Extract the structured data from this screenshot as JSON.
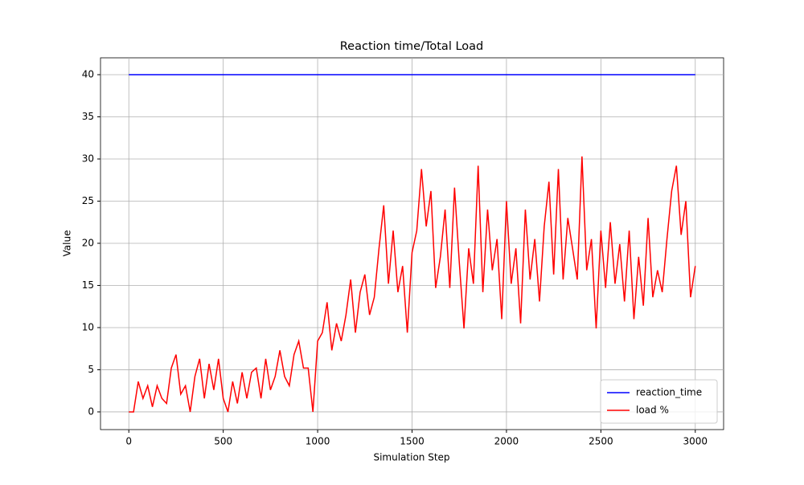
{
  "chart_data": {
    "type": "line",
    "title": "Reaction time/Total Load",
    "x_label": "Simulation Step",
    "y_label": "Value",
    "xlim": [
      -150,
      3150
    ],
    "ylim": [
      -2.1,
      42
    ],
    "xticks": [
      0,
      500,
      1000,
      1500,
      2000,
      2500,
      3000
    ],
    "yticks": [
      0,
      5,
      10,
      15,
      20,
      25,
      30,
      35,
      40
    ],
    "grid": true,
    "legend": "lower right",
    "series": [
      {
        "name": "reaction_time",
        "color": "#0000ff",
        "x": [
          0,
          3000
        ],
        "values": [
          40,
          40
        ]
      },
      {
        "name": "load %",
        "color": "#ff0000",
        "x": [
          0,
          25,
          50,
          75,
          100,
          125,
          150,
          175,
          200,
          225,
          250,
          275,
          300,
          325,
          350,
          375,
          400,
          425,
          450,
          475,
          500,
          525,
          550,
          575,
          600,
          625,
          650,
          675,
          700,
          725,
          750,
          775,
          800,
          825,
          850,
          875,
          900,
          925,
          950,
          975,
          1000,
          1025,
          1050,
          1075,
          1100,
          1125,
          1150,
          1175,
          1200,
          1225,
          1250,
          1275,
          1300,
          1325,
          1350,
          1375,
          1400,
          1425,
          1450,
          1475,
          1500,
          1525,
          1550,
          1575,
          1600,
          1625,
          1650,
          1675,
          1700,
          1725,
          1750,
          1775,
          1800,
          1825,
          1850,
          1875,
          1900,
          1925,
          1950,
          1975,
          2000,
          2025,
          2050,
          2075,
          2100,
          2125,
          2150,
          2175,
          2200,
          2225,
          2250,
          2275,
          2300,
          2325,
          2350,
          2375,
          2400,
          2425,
          2450,
          2475,
          2500,
          2525,
          2550,
          2575,
          2600,
          2625,
          2650,
          2675,
          2700,
          2725,
          2750,
          2775,
          2800,
          2825,
          2850,
          2875,
          2900,
          2925,
          2950,
          2975,
          3000
        ],
        "values": [
          0,
          0,
          3.6,
          1.6,
          3.1,
          0.6,
          3.1,
          1.6,
          1,
          5.2,
          6.8,
          2.1,
          3.1,
          0,
          4.2,
          6.3,
          1.6,
          5.7,
          2.6,
          6.3,
          1.6,
          0,
          3.6,
          1,
          4.7,
          1.6,
          4.7,
          5.2,
          1.6,
          6.3,
          2.6,
          4.2,
          7.3,
          4.2,
          3.1,
          6.8,
          8.4,
          5.2,
          5.2,
          0,
          8.4,
          9.4,
          13,
          7.3,
          10.5,
          8.4,
          11.5,
          15.7,
          9.4,
          14.2,
          16.3,
          11.5,
          13.6,
          19.4,
          24.5,
          15.2,
          21.5,
          14.2,
          17.3,
          9.4,
          18.9,
          21.5,
          28.8,
          22,
          26.2,
          14.7,
          18.4,
          24,
          14.7,
          26.6,
          17.8,
          9.9,
          19.4,
          15.2,
          29.2,
          14.2,
          24,
          16.8,
          20.5,
          11,
          25,
          15.2,
          19.4,
          10.5,
          24,
          15.7,
          20.5,
          13.1,
          22,
          27.3,
          16.3,
          28.8,
          15.7,
          23,
          19.4,
          15.7,
          30.3,
          16.8,
          20.5,
          9.9,
          21.5,
          14.7,
          22.5,
          15.2,
          19.9,
          13.1,
          21.5,
          11,
          18.4,
          12.6,
          23,
          13.6,
          16.8,
          14.2,
          20.5,
          26.2,
          29.2,
          21,
          25,
          13.6,
          17.3
        ]
      }
    ]
  }
}
